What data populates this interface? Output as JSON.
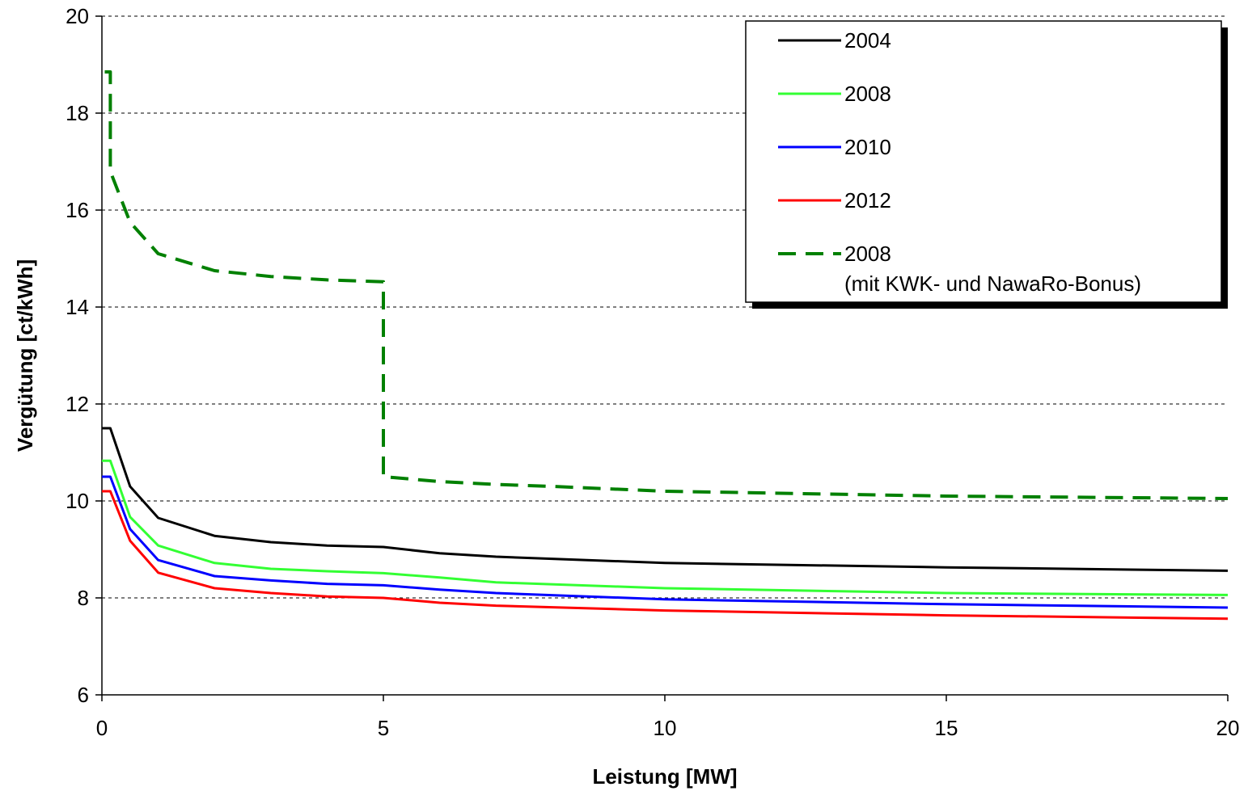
{
  "chart_data": {
    "type": "line",
    "title": "",
    "xlabel": "Leistung [MW]",
    "ylabel": "Vergütung [ct/kWh]",
    "xlim": [
      0,
      20
    ],
    "ylim": [
      6,
      20
    ],
    "xticks": [
      "0",
      "5",
      "10",
      "15",
      "20"
    ],
    "yticks": [
      "6",
      "8",
      "10",
      "12",
      "14",
      "16",
      "18",
      "20"
    ],
    "grid": "horizontal-dashed",
    "legend_position": "top-right",
    "series": [
      {
        "name": "2004",
        "color": "#000000",
        "dash": "solid",
        "x": [
          0,
          0.15,
          0.5,
          1,
          2,
          3,
          4,
          5,
          6,
          7,
          10,
          15,
          20
        ],
        "y": [
          11.5,
          11.5,
          10.3,
          9.65,
          9.28,
          9.15,
          9.08,
          9.05,
          8.92,
          8.85,
          8.72,
          8.63,
          8.56
        ]
      },
      {
        "name": "2008",
        "color": "#33ff33",
        "dash": "solid",
        "x": [
          0,
          0.15,
          0.5,
          1,
          2,
          3,
          4,
          5,
          6,
          7,
          10,
          15,
          20
        ],
        "y": [
          10.83,
          10.83,
          9.67,
          9.08,
          8.72,
          8.6,
          8.55,
          8.51,
          8.42,
          8.32,
          8.2,
          8.1,
          8.06
        ]
      },
      {
        "name": "2010",
        "color": "#0000ff",
        "dash": "solid",
        "x": [
          0,
          0.15,
          0.5,
          1,
          2,
          3,
          4,
          5,
          6,
          7,
          10,
          15,
          20
        ],
        "y": [
          10.5,
          10.5,
          9.42,
          8.78,
          8.45,
          8.36,
          8.29,
          8.26,
          8.17,
          8.1,
          7.97,
          7.87,
          7.8
        ]
      },
      {
        "name": "2012",
        "color": "#ff0000",
        "dash": "solid",
        "x": [
          0,
          0.15,
          0.5,
          1,
          2,
          3,
          4,
          5,
          6,
          7,
          10,
          15,
          20
        ],
        "y": [
          10.2,
          10.2,
          9.18,
          8.52,
          8.2,
          8.1,
          8.03,
          8.0,
          7.9,
          7.84,
          7.74,
          7.64,
          7.57
        ]
      },
      {
        "name": "2008\n(mit KWK- und NawaRo-Bonus)",
        "color": "#008000",
        "dash": "dashed",
        "x": [
          0.05,
          0.15,
          0.15,
          0.5,
          1,
          2,
          3,
          4,
          5,
          5,
          6,
          7,
          8,
          10,
          15,
          20
        ],
        "y": [
          18.85,
          18.85,
          16.8,
          15.75,
          15.1,
          14.75,
          14.63,
          14.56,
          14.52,
          10.5,
          10.4,
          10.34,
          10.3,
          10.2,
          10.1,
          10.05
        ]
      }
    ]
  },
  "legend": {
    "entries": [
      {
        "label": "2004",
        "color": "#000000",
        "dash": "solid"
      },
      {
        "label": "2008",
        "color": "#33ff33",
        "dash": "solid"
      },
      {
        "label": "2010",
        "color": "#0000ff",
        "dash": "solid"
      },
      {
        "label": "2012",
        "color": "#ff0000",
        "dash": "solid"
      },
      {
        "label": "2008",
        "label2": "(mit KWK- und NawaRo-Bonus)",
        "color": "#008000",
        "dash": "dashed"
      }
    ]
  }
}
